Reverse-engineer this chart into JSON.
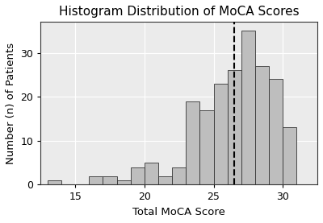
{
  "title": "Histogram Distribution of MoCA Scores",
  "xlabel": "Total MoCA Score",
  "ylabel": "Number (n) of Patients",
  "bar_left_edges": [
    13,
    14,
    15,
    16,
    17,
    18,
    19,
    20,
    21,
    22,
    23,
    24,
    25,
    26,
    27,
    28,
    29,
    30
  ],
  "bar_heights": [
    1,
    0,
    0,
    2,
    2,
    1,
    4,
    5,
    2,
    4,
    19,
    17,
    23,
    26,
    35,
    27,
    24,
    13
  ],
  "bar_width": 1,
  "bar_color": "#bebebe",
  "bar_edgecolor": "#333333",
  "dashed_line_x": 26.5,
  "dashed_line_color": "#000000",
  "xlim": [
    12.5,
    32.5
  ],
  "ylim": [
    0,
    37
  ],
  "xticks": [
    15,
    20,
    25,
    30
  ],
  "yticks": [
    0,
    10,
    20,
    30
  ],
  "grid_color": "#ffffff",
  "plot_bg_color": "#ebebeb",
  "fig_bg_color": "#ffffff",
  "title_fontsize": 11,
  "axis_label_fontsize": 9.5,
  "tick_fontsize": 9
}
